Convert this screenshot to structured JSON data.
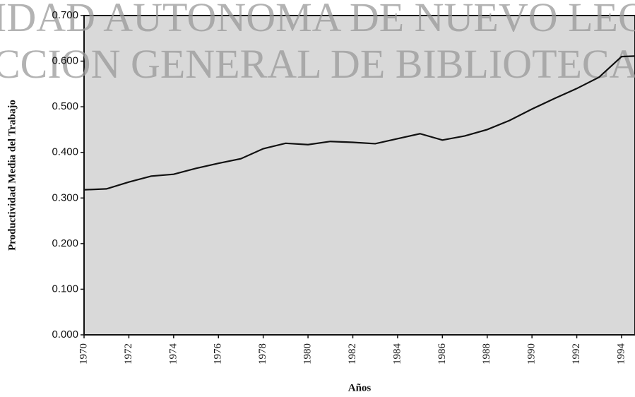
{
  "chart_data": {
    "type": "line",
    "watermark": [
      "IDAD AUTONOMA DE NUEVO LEO",
      "CCION GENERAL DE BIBLIOTECAS"
    ],
    "ylabel": "Productividad Media del Trabajo",
    "xlabel": "Años",
    "x": [
      1970,
      1971,
      1972,
      1973,
      1974,
      1975,
      1976,
      1977,
      1978,
      1979,
      1980,
      1981,
      1982,
      1983,
      1984,
      1985,
      1986,
      1987,
      1988,
      1989,
      1990,
      1991,
      1992,
      1993,
      1994,
      1995
    ],
    "values": [
      0.318,
      0.32,
      0.335,
      0.348,
      0.352,
      0.365,
      0.376,
      0.386,
      0.408,
      0.42,
      0.417,
      0.424,
      0.422,
      0.419,
      0.43,
      0.441,
      0.427,
      0.436,
      0.45,
      0.47,
      0.495,
      0.518,
      0.54,
      0.565,
      0.61,
      0.612
    ],
    "color": "#111111",
    "xlim": [
      1970,
      1994.6
    ],
    "xticks": [
      1970,
      1972,
      1974,
      1976,
      1978,
      1980,
      1982,
      1984,
      1986,
      1988,
      1990,
      1992,
      1994
    ],
    "ylim": [
      0,
      0.7
    ],
    "yticks": [
      {
        "value": 0,
        "label": "0.000"
      },
      {
        "value": 0.1,
        "label": "0.100"
      },
      {
        "value": 0.2,
        "label": "0.200"
      },
      {
        "value": 0.3,
        "label": "0.300"
      },
      {
        "value": 0.4,
        "label": "0.400"
      },
      {
        "value": 0.5,
        "label": "0.500"
      },
      {
        "value": 0.6,
        "label": "0.600"
      },
      {
        "value": 0.7,
        "label": "0.700"
      }
    ]
  }
}
